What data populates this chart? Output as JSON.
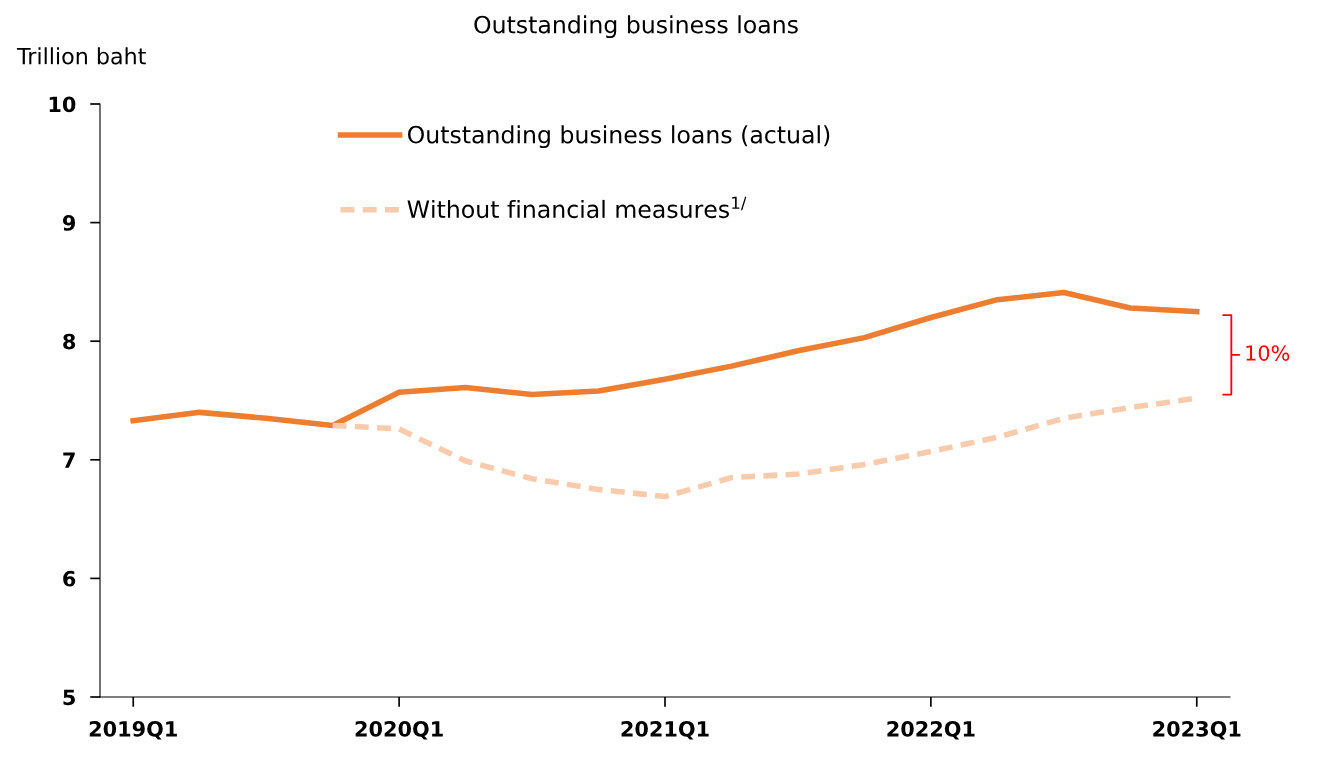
{
  "chart_data": {
    "type": "line",
    "title": "Outstanding business loans",
    "ylabel": "Trillion baht",
    "categories": [
      "2019Q1",
      null,
      null,
      null,
      "2020Q1",
      null,
      null,
      null,
      "2021Q1",
      null,
      null,
      null,
      "2022Q1",
      null,
      null,
      null,
      "2023Q1"
    ],
    "series": [
      {
        "name": "Outstanding business loans (actual)",
        "color": "#ed7d31",
        "line_style": "solid",
        "values": [
          7.33,
          7.4,
          7.35,
          7.29,
          7.57,
          7.61,
          7.55,
          7.58,
          7.68,
          7.79,
          7.92,
          8.03,
          8.2,
          8.35,
          8.41,
          8.28,
          8.25
        ]
      },
      {
        "name": "Without financial measures$^{1/}$",
        "color": "#f8cbad",
        "line_style": "dashed",
        "values": [
          null,
          null,
          null,
          7.29,
          7.26,
          6.99,
          6.84,
          6.75,
          6.69,
          6.85,
          6.88,
          6.96,
          7.07,
          7.19,
          7.35,
          7.44,
          7.52
        ]
      }
    ],
    "ylim": [
      5,
      10
    ],
    "yticks": [
      5,
      6,
      7,
      8,
      9,
      10
    ],
    "grid": false,
    "legend": "top",
    "marker": "none",
    "annotations": [
      "10%"
    ]
  }
}
